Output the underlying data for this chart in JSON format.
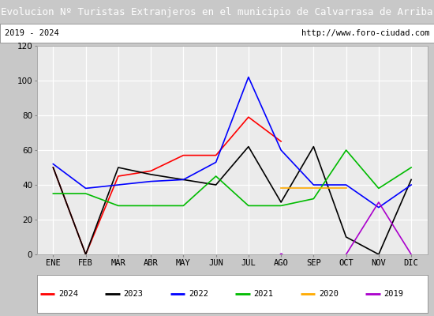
{
  "title": "Evolucion Nº Turistas Extranjeros en el municipio de Calvarrasa de Arriba",
  "subtitle_left": "2019 - 2024",
  "subtitle_right": "http://www.foro-ciudad.com",
  "months": [
    "ENE",
    "FEB",
    "MAR",
    "ABR",
    "MAY",
    "JUN",
    "JUL",
    "AGO",
    "SEP",
    "OCT",
    "NOV",
    "DIC"
  ],
  "ylim": [
    0,
    120
  ],
  "yticks": [
    0,
    20,
    40,
    60,
    80,
    100,
    120
  ],
  "series": {
    "2024": {
      "color": "#ff0000",
      "values": [
        50,
        0,
        45,
        48,
        57,
        57,
        79,
        65,
        null,
        null,
        null,
        null
      ]
    },
    "2023": {
      "color": "#000000",
      "values": [
        50,
        0,
        50,
        46,
        43,
        40,
        62,
        30,
        62,
        10,
        0,
        43
      ]
    },
    "2022": {
      "color": "#0000ff",
      "values": [
        52,
        38,
        40,
        42,
        43,
        53,
        102,
        60,
        40,
        40,
        27,
        40
      ]
    },
    "2021": {
      "color": "#00bb00",
      "values": [
        35,
        35,
        28,
        28,
        28,
        45,
        28,
        28,
        32,
        60,
        38,
        50
      ]
    },
    "2020": {
      "color": "#ffaa00",
      "values": [
        null,
        null,
        null,
        null,
        null,
        null,
        null,
        38,
        38,
        38,
        null,
        null
      ]
    },
    "2019": {
      "color": "#aa00cc",
      "values": [
        null,
        null,
        null,
        null,
        null,
        null,
        null,
        0,
        null,
        0,
        30,
        0
      ]
    }
  },
  "title_bg_color": "#4c72b0",
  "title_text_color": "#ffffff",
  "plot_bg_color": "#ebebeb",
  "grid_color": "#ffffff",
  "fig_bg_color": "#c8c8c8",
  "legend_items": [
    [
      "2024",
      "#ff0000"
    ],
    [
      "2023",
      "#000000"
    ],
    [
      "2022",
      "#0000ff"
    ],
    [
      "2021",
      "#00bb00"
    ],
    [
      "2020",
      "#ffaa00"
    ],
    [
      "2019",
      "#aa00cc"
    ]
  ]
}
